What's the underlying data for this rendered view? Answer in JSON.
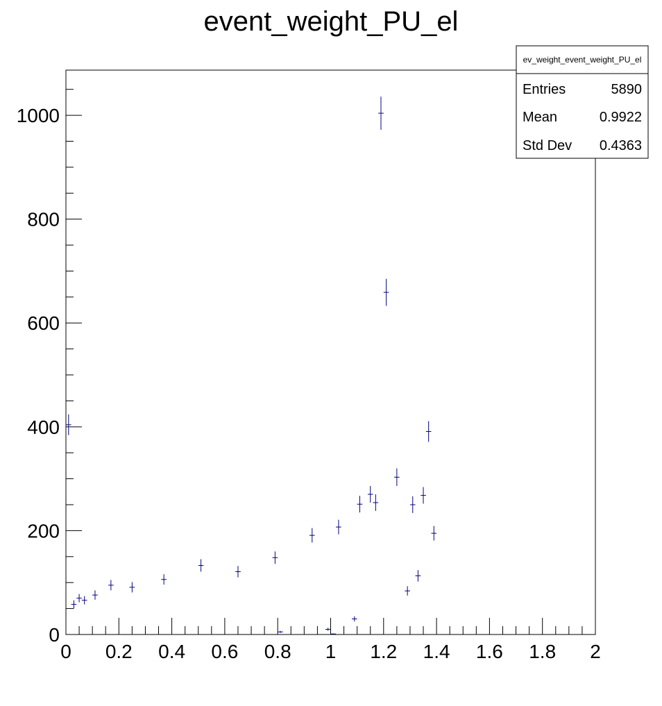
{
  "chart_data": {
    "type": "scatter",
    "title": "event_weight_PU_el",
    "xlim": [
      0,
      2
    ],
    "ylim": [
      0,
      1087
    ],
    "x_ticks": [
      "0",
      "0.2",
      "0.4",
      "0.6",
      "0.8",
      "1",
      "1.2",
      "1.4",
      "1.6",
      "1.8",
      "2"
    ],
    "y_ticks": [
      "0",
      "200",
      "400",
      "600",
      "800",
      "1000"
    ],
    "grid": false,
    "marker_color": "#000080",
    "stats_box": {
      "name": "ev_weight_event_weight_PU_el",
      "rows": [
        {
          "label": "Entries",
          "value": "5890"
        },
        {
          "label": "Mean",
          "value": "0.9922"
        },
        {
          "label": "Std Dev",
          "value": "0.4363"
        }
      ]
    },
    "points": [
      {
        "x": 0.01,
        "y": 404,
        "err": 20
      },
      {
        "x": 0.03,
        "y": 58,
        "err": 8
      },
      {
        "x": 0.05,
        "y": 70,
        "err": 8
      },
      {
        "x": 0.07,
        "y": 66,
        "err": 8
      },
      {
        "x": 0.11,
        "y": 76,
        "err": 9
      },
      {
        "x": 0.17,
        "y": 95,
        "err": 10
      },
      {
        "x": 0.25,
        "y": 91,
        "err": 10
      },
      {
        "x": 0.37,
        "y": 106,
        "err": 10
      },
      {
        "x": 0.51,
        "y": 133,
        "err": 12
      },
      {
        "x": 0.65,
        "y": 121,
        "err": 11
      },
      {
        "x": 0.79,
        "y": 148,
        "err": 12
      },
      {
        "x": 0.81,
        "y": 5,
        "err": 2
      },
      {
        "x": 0.93,
        "y": 191,
        "err": 14
      },
      {
        "x": 0.99,
        "y": 10,
        "err": 3
      },
      {
        "x": 1.01,
        "y": 1,
        "err": 1
      },
      {
        "x": 1.03,
        "y": 207,
        "err": 14
      },
      {
        "x": 1.09,
        "y": 30,
        "err": 5
      },
      {
        "x": 1.11,
        "y": 251,
        "err": 16
      },
      {
        "x": 1.15,
        "y": 270,
        "err": 16
      },
      {
        "x": 1.17,
        "y": 254,
        "err": 16
      },
      {
        "x": 1.19,
        "y": 1004,
        "err": 32
      },
      {
        "x": 1.21,
        "y": 659,
        "err": 26
      },
      {
        "x": 1.25,
        "y": 303,
        "err": 17
      },
      {
        "x": 1.29,
        "y": 84,
        "err": 9
      },
      {
        "x": 1.31,
        "y": 250,
        "err": 16
      },
      {
        "x": 1.33,
        "y": 113,
        "err": 11
      },
      {
        "x": 1.35,
        "y": 268,
        "err": 16
      },
      {
        "x": 1.37,
        "y": 391,
        "err": 20
      },
      {
        "x": 1.39,
        "y": 195,
        "err": 14
      }
    ]
  }
}
